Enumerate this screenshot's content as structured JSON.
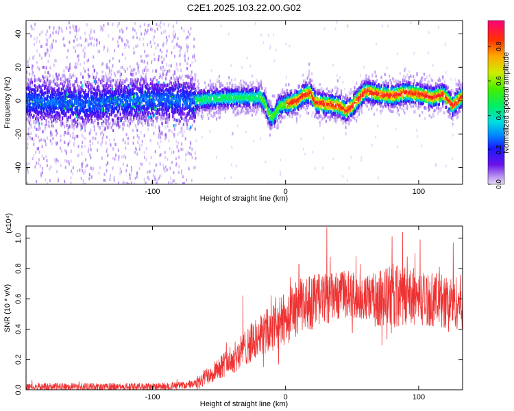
{
  "title": "C2E1.2025.103.22.00.G02",
  "chart_data": [
    {
      "type": "heatmap",
      "xlabel": "Height of straight line (km)",
      "ylabel": "Frequency (Hz)",
      "xlim": [
        -195,
        133
      ],
      "ylim": [
        -50,
        48
      ],
      "xticks": [
        -100,
        0,
        100
      ],
      "yticks": [
        -40,
        -20,
        0,
        20,
        40
      ],
      "colorbar": {
        "label": "Normalized spectral amplitude",
        "range": [
          0,
          0.95
        ],
        "ticks": [
          "0.0",
          "0.2",
          "0.4",
          "0.6",
          "0.8"
        ]
      },
      "ridge": [
        [
          -195,
          0
        ],
        [
          -150,
          -2
        ],
        [
          -100,
          1
        ],
        [
          -70,
          0
        ],
        [
          -60,
          1
        ],
        [
          -40,
          2
        ],
        [
          -22,
          2
        ],
        [
          -20,
          3
        ],
        [
          -16,
          -1
        ],
        [
          -13,
          -8
        ],
        [
          -10,
          -10
        ],
        [
          -5,
          -3
        ],
        [
          0,
          -2
        ],
        [
          8,
          0
        ],
        [
          12,
          3
        ],
        [
          18,
          5
        ],
        [
          22,
          -1
        ],
        [
          30,
          -2
        ],
        [
          40,
          -3
        ],
        [
          45,
          -6
        ],
        [
          50,
          -3
        ],
        [
          55,
          2
        ],
        [
          60,
          6
        ],
        [
          70,
          4
        ],
        [
          80,
          3
        ],
        [
          90,
          5
        ],
        [
          100,
          4
        ],
        [
          110,
          2
        ],
        [
          118,
          4
        ],
        [
          125,
          -3
        ],
        [
          130,
          1
        ],
        [
          133,
          3
        ]
      ]
    },
    {
      "type": "line",
      "xlabel": "Height of straight line (km)",
      "ylabel": "SNR (10 * v/v)",
      "y_multiplier": "(x10⁴)",
      "xlim": [
        -195,
        133
      ],
      "ylim": [
        0,
        1.08
      ],
      "xticks": [
        -100,
        0,
        100
      ],
      "yticks": [
        "0.0",
        "0.2",
        "0.4",
        "0.6",
        "0.8",
        "1.0"
      ],
      "series": [
        {
          "color": "#ee3333",
          "envelope": [
            [
              -195,
              0.02
            ],
            [
              -150,
              0.02
            ],
            [
              -100,
              0.02
            ],
            [
              -75,
              0.03
            ],
            [
              -65,
              0.04
            ],
            [
              -60,
              0.09
            ],
            [
              -50,
              0.15
            ],
            [
              -40,
              0.2
            ],
            [
              -30,
              0.28
            ],
            [
              -20,
              0.35
            ],
            [
              -10,
              0.4
            ],
            [
              0,
              0.47
            ],
            [
              10,
              0.55
            ],
            [
              20,
              0.58
            ],
            [
              30,
              0.6
            ],
            [
              40,
              0.62
            ],
            [
              50,
              0.62
            ],
            [
              60,
              0.6
            ],
            [
              70,
              0.6
            ],
            [
              80,
              0.62
            ],
            [
              90,
              0.62
            ],
            [
              100,
              0.6
            ],
            [
              110,
              0.6
            ],
            [
              120,
              0.58
            ],
            [
              133,
              0.58
            ]
          ],
          "spread": [
            [
              -195,
              0.02
            ],
            [
              -70,
              0.02
            ],
            [
              -60,
              0.05
            ],
            [
              -40,
              0.08
            ],
            [
              -20,
              0.12
            ],
            [
              0,
              0.15
            ],
            [
              20,
              0.15
            ],
            [
              40,
              0.13
            ],
            [
              60,
              0.12
            ],
            [
              80,
              0.18
            ],
            [
              100,
              0.15
            ],
            [
              133,
              0.15
            ]
          ],
          "peaks": [
            [
              31,
              1.07
            ],
            [
              88,
              1.04
            ],
            [
              80,
              1.01
            ],
            [
              101,
              0.99
            ],
            [
              126,
              0.97
            ],
            [
              10,
              0.83
            ],
            [
              -32,
              0.62
            ]
          ]
        }
      ]
    }
  ]
}
